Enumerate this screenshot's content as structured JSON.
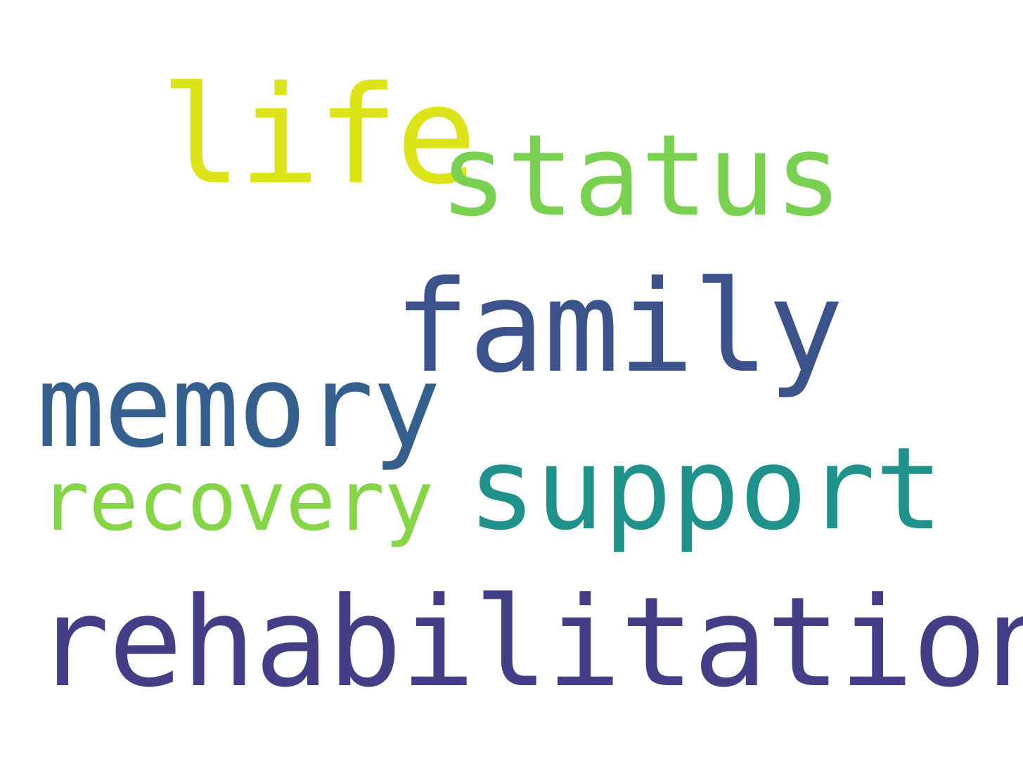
{
  "words": {
    "life": {
      "text": "life",
      "color": "#dce319"
    },
    "status": {
      "text": "status",
      "color": "#7ad151"
    },
    "family": {
      "text": "family",
      "color": "#3b528b"
    },
    "memory": {
      "text": "memory",
      "color": "#355f8d"
    },
    "recovery": {
      "text": "recovery",
      "color": "#86d549"
    },
    "support": {
      "text": "support",
      "color": "#21918c"
    },
    "rehabilitation": {
      "text": "rehabilitation",
      "color": "#433e85"
    }
  },
  "background_color": "#ffffff"
}
